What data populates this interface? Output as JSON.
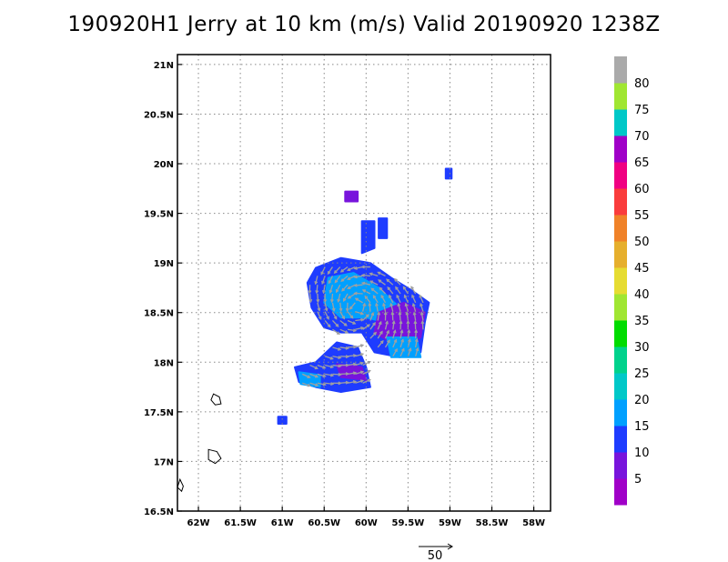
{
  "title": "190920H1 Jerry at 10 km (m/s) Valid 20190920  1238Z",
  "chart_data": {
    "type": "heatmap",
    "title": "190920H1 Jerry at 10 km (m/s) Valid 20190920  1238Z",
    "xlim": [
      -62.25,
      -57.8
    ],
    "ylim": [
      16.5,
      21.1
    ],
    "grid": true,
    "x_ticks": [
      "62W",
      "61.5W",
      "61W",
      "60.5W",
      "60W",
      "59.5W",
      "59W",
      "58.5W",
      "58W"
    ],
    "y_ticks": [
      "16.5N",
      "17N",
      "17.5N",
      "18N",
      "18.5N",
      "19N",
      "19.5N",
      "20N",
      "20.5N",
      "21N"
    ],
    "legend_position": "right",
    "colorbar": {
      "labels": [
        "5",
        "10",
        "15",
        "20",
        "25",
        "30",
        "35",
        "40",
        "45",
        "50",
        "55",
        "60",
        "65",
        "70",
        "75",
        "80"
      ],
      "colors": [
        "#a000c8",
        "#7814dc",
        "#1e3cff",
        "#00a0ff",
        "#00c8c8",
        "#00d28c",
        "#00dc00",
        "#a0e632",
        "#e6dc32",
        "#e6af2d",
        "#f08228",
        "#fa3c3c",
        "#f00082",
        "#a000c8",
        "#00c8c8",
        "#a0e632",
        "#aaaaaa"
      ]
    },
    "wind_regions": [
      {
        "name": "main core",
        "polygon": [
          [
            -60.6,
            18.95
          ],
          [
            -60.3,
            19.05
          ],
          [
            -59.95,
            19.0
          ],
          [
            -59.7,
            18.85
          ],
          [
            -59.45,
            18.72
          ],
          [
            -59.25,
            18.6
          ],
          [
            -59.3,
            18.4
          ],
          [
            -59.35,
            18.1
          ],
          [
            -59.6,
            18.05
          ],
          [
            -59.9,
            18.1
          ],
          [
            -60.05,
            18.3
          ],
          [
            -60.3,
            18.3
          ],
          [
            -60.5,
            18.35
          ],
          [
            -60.65,
            18.55
          ],
          [
            -60.7,
            18.8
          ]
        ],
        "speed": 12
      },
      {
        "name": "core interior",
        "polygon": [
          [
            -60.45,
            18.85
          ],
          [
            -60.15,
            18.9
          ],
          [
            -59.85,
            18.75
          ],
          [
            -59.6,
            18.55
          ],
          [
            -59.75,
            18.4
          ],
          [
            -60.0,
            18.45
          ],
          [
            -60.3,
            18.45
          ],
          [
            -60.5,
            18.6
          ]
        ],
        "speed": 17
      },
      {
        "name": "east rainband",
        "polygon": [
          [
            -59.85,
            18.5
          ],
          [
            -59.55,
            18.6
          ],
          [
            -59.3,
            18.5
          ],
          [
            -59.35,
            18.25
          ],
          [
            -59.6,
            18.15
          ],
          [
            -59.9,
            18.3
          ]
        ],
        "speed": 5
      },
      {
        "name": "south-east lobe",
        "polygon": [
          [
            -59.75,
            18.25
          ],
          [
            -59.4,
            18.25
          ],
          [
            -59.35,
            18.05
          ],
          [
            -59.7,
            18.05
          ]
        ],
        "speed": 17
      },
      {
        "name": "southern band",
        "polygon": [
          [
            -60.35,
            18.2
          ],
          [
            -60.1,
            18.15
          ],
          [
            -60.0,
            17.95
          ],
          [
            -59.95,
            17.75
          ],
          [
            -60.3,
            17.7
          ],
          [
            -60.6,
            17.75
          ],
          [
            -60.8,
            17.8
          ],
          [
            -60.85,
            17.95
          ],
          [
            -60.6,
            18.0
          ]
        ],
        "speed": 11
      },
      {
        "name": "southern purple",
        "polygon": [
          [
            -60.35,
            17.98
          ],
          [
            -60.05,
            17.95
          ],
          [
            -60.0,
            17.82
          ],
          [
            -60.3,
            17.85
          ]
        ],
        "speed": 5
      },
      {
        "name": "southern cyan",
        "polygon": [
          [
            -60.8,
            17.9
          ],
          [
            -60.55,
            17.87
          ],
          [
            -60.55,
            17.75
          ],
          [
            -60.78,
            17.78
          ]
        ],
        "speed": 17
      },
      {
        "name": "northern cell",
        "polygon": [
          [
            -60.05,
            19.42
          ],
          [
            -59.9,
            19.42
          ],
          [
            -59.9,
            19.15
          ],
          [
            -60.05,
            19.1
          ]
        ],
        "speed": 12
      },
      {
        "name": "north cell b",
        "polygon": [
          [
            -59.85,
            19.45
          ],
          [
            -59.75,
            19.45
          ],
          [
            -59.75,
            19.25
          ],
          [
            -59.85,
            19.25
          ]
        ],
        "speed": 12
      },
      {
        "name": "north cell c",
        "polygon": [
          [
            -60.25,
            19.72
          ],
          [
            -60.1,
            19.72
          ],
          [
            -60.1,
            19.62
          ],
          [
            -60.25,
            19.62
          ]
        ],
        "speed": 5
      },
      {
        "name": "north-east fleck",
        "polygon": [
          [
            -59.05,
            19.95
          ],
          [
            -58.98,
            19.95
          ],
          [
            -58.98,
            19.85
          ],
          [
            -59.05,
            19.85
          ]
        ],
        "speed": 12
      },
      {
        "name": "small fleck",
        "polygon": [
          [
            -61.05,
            17.45
          ],
          [
            -60.95,
            17.45
          ],
          [
            -60.95,
            17.38
          ],
          [
            -61.05,
            17.38
          ]
        ],
        "speed": 12
      }
    ],
    "land_outlines": [
      [
        [
          -61.82,
          17.68
        ],
        [
          -61.75,
          17.65
        ],
        [
          -61.73,
          17.58
        ],
        [
          -61.8,
          17.57
        ],
        [
          -61.85,
          17.62
        ]
      ],
      [
        [
          -61.88,
          17.12
        ],
        [
          -61.78,
          17.1
        ],
        [
          -61.73,
          17.03
        ],
        [
          -61.8,
          16.98
        ],
        [
          -61.88,
          17.02
        ]
      ],
      [
        [
          -62.22,
          16.82
        ],
        [
          -62.18,
          16.75
        ],
        [
          -62.2,
          16.7
        ],
        [
          -62.25,
          16.74
        ]
      ]
    ],
    "reference_vector": {
      "label": "50"
    }
  }
}
